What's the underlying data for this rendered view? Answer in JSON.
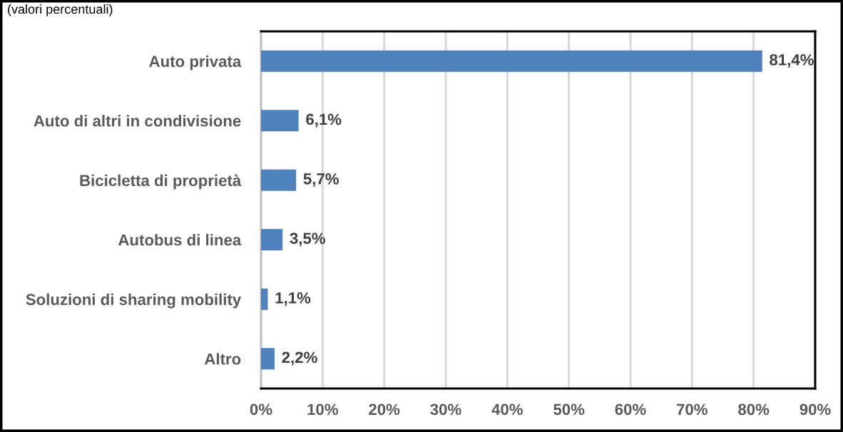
{
  "chart_data": {
    "type": "bar",
    "orientation": "horizontal",
    "subtitle": "(valori percentuali)",
    "categories": [
      "Auto privata",
      "Auto di altri in condivisione",
      "Bicicletta di proprietà",
      "Autobus di linea",
      "Soluzioni di sharing mobility",
      "Altro"
    ],
    "values": [
      81.4,
      6.1,
      5.7,
      3.5,
      1.1,
      2.2
    ],
    "color": "#4f81bd",
    "value_labels": [
      "81,4%",
      "6,1%",
      "5,7%",
      "3,5%",
      "1,1%",
      "2,2%"
    ],
    "xlim": [
      0,
      90
    ],
    "xticks": [
      {
        "value": 0,
        "label": "0%"
      },
      {
        "value": 10,
        "label": "10%"
      },
      {
        "value": 20,
        "label": "20%"
      },
      {
        "value": 30,
        "label": "30%"
      },
      {
        "value": 40,
        "label": "40%"
      },
      {
        "value": 50,
        "label": "50%"
      },
      {
        "value": 60,
        "label": "60%"
      },
      {
        "value": 70,
        "label": "70%"
      },
      {
        "value": 80,
        "label": "80%"
      },
      {
        "value": 90,
        "label": "90%"
      }
    ],
    "grid": "x",
    "legend": false
  }
}
